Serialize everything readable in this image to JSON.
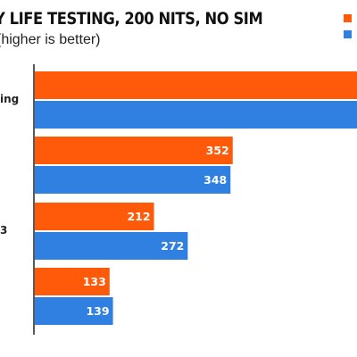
{
  "colors": {
    "series_a": "#FF5A0A",
    "series_b": "#2F80E0",
    "text": "#222222",
    "background": "#FFFFFF"
  },
  "chart_data": {
    "type": "bar",
    "orientation": "horizontal",
    "title": "Y LIFE TESTING, 200 NITS, NO SIM",
    "subtitle": "(higher is better)",
    "categories": [
      "ing",
      "",
      "3",
      ""
    ],
    "series": [
      {
        "values": [
          null,
          352,
          212,
          133
        ],
        "value_labels": [
          "",
          "352",
          "212",
          "133"
        ],
        "color": "#FF5A0A"
      },
      {
        "values": [
          null,
          348,
          272,
          139
        ],
        "value_labels": [
          "",
          "348",
          "272",
          "139"
        ],
        "color": "#2F80E0"
      }
    ],
    "xlim": [
      0,
      525
    ],
    "grid": false,
    "legend": "top-right",
    "note": "First category bars extend beyond the visible area; their values are not visible."
  }
}
